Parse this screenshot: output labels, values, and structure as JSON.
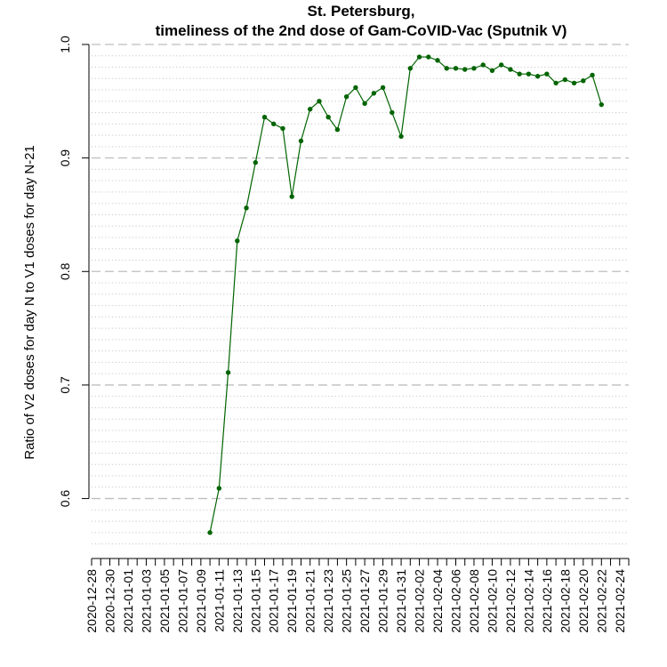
{
  "chart_data": {
    "type": "line",
    "title": "St. Petersburg,",
    "subtitle": "timeliness of the 2nd dose of Gam-CoVID-Vac (Sputnik V)",
    "xlabel": "",
    "ylabel": "Ratio of V2 doses for day N to V1 doses for day N-21",
    "x_range": [
      "2020-12-28",
      "2021-02-25"
    ],
    "ylim": [
      0.555,
      1.0
    ],
    "y_ticks": [
      0.6,
      0.7,
      0.8,
      0.9,
      1.0
    ],
    "y_tick_labels": [
      "0.6",
      "0.7",
      "0.8",
      "0.9",
      "1.0"
    ],
    "y_minor_step": 0.01,
    "x_tick_labels": [
      "2020-12-28",
      "2020-12-30",
      "2021-01-01",
      "2021-01-03",
      "2021-01-05",
      "2021-01-07",
      "2021-01-09",
      "2021-01-11",
      "2021-01-13",
      "2021-01-15",
      "2021-01-17",
      "2021-01-19",
      "2021-01-21",
      "2021-01-23",
      "2021-01-25",
      "2021-01-27",
      "2021-01-29",
      "2021-01-31",
      "2021-02-02",
      "2021-02-04",
      "2021-02-06",
      "2021-02-08",
      "2021-02-10",
      "2021-02-12",
      "2021-02-14",
      "2021-02-16",
      "2021-02-18",
      "2021-02-20",
      "2021-02-22",
      "2021-02-24"
    ],
    "grid": true,
    "colors": {
      "series": "#006400",
      "major_grid": "#bebebe",
      "minor_grid": "#c8c8c8"
    },
    "series": [
      {
        "dates": [
          "2021-01-10",
          "2021-01-11",
          "2021-01-12",
          "2021-01-13",
          "2021-01-14",
          "2021-01-15",
          "2021-01-16",
          "2021-01-17",
          "2021-01-18",
          "2021-01-19",
          "2021-01-20",
          "2021-01-21",
          "2021-01-22",
          "2021-01-23",
          "2021-01-24",
          "2021-01-25",
          "2021-01-26",
          "2021-01-27",
          "2021-01-28",
          "2021-01-29",
          "2021-01-30",
          "2021-01-31",
          "2021-02-01",
          "2021-02-02",
          "2021-02-03",
          "2021-02-04",
          "2021-02-05",
          "2021-02-06",
          "2021-02-07",
          "2021-02-08",
          "2021-02-09",
          "2021-02-10",
          "2021-02-11",
          "2021-02-12",
          "2021-02-13",
          "2021-02-14",
          "2021-02-15",
          "2021-02-16",
          "2021-02-17",
          "2021-02-18",
          "2021-02-19",
          "2021-02-20",
          "2021-02-21",
          "2021-02-22"
        ],
        "values": [
          0.57,
          0.609,
          0.711,
          0.827,
          0.856,
          0.896,
          0.936,
          0.93,
          0.926,
          0.866,
          0.915,
          0.943,
          0.95,
          0.936,
          0.925,
          0.954,
          0.962,
          0.948,
          0.957,
          0.962,
          0.94,
          0.919,
          0.979,
          0.989,
          0.989,
          0.986,
          0.979,
          0.979,
          0.978,
          0.979,
          0.982,
          0.977,
          0.982,
          0.978,
          0.974,
          0.974,
          0.972,
          0.974,
          0.966,
          0.969,
          0.966,
          0.968,
          0.973,
          0.947
        ]
      }
    ]
  }
}
